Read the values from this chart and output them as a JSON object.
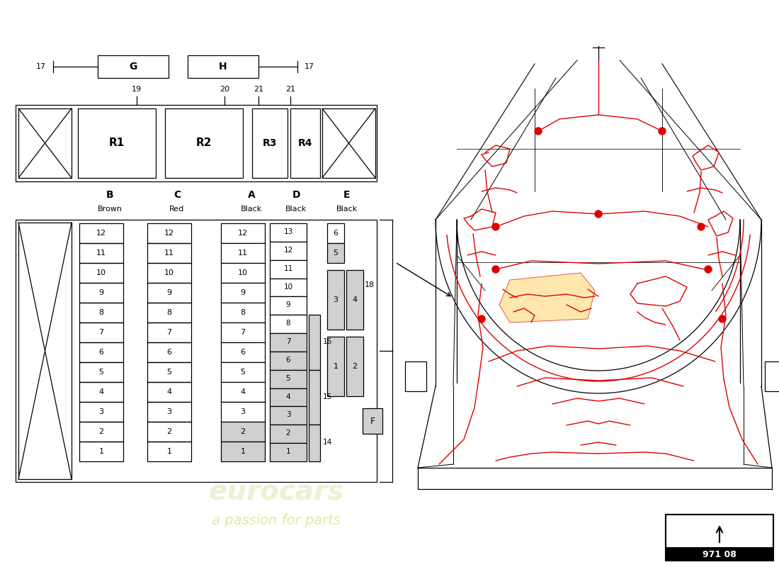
{
  "bg": "#ffffff",
  "bk": "#000000",
  "rd": "#dd0000",
  "lg": "#d0d0d0",
  "yw": "#ffe090",
  "wm1": "#e0e0a8",
  "wm2": "#c8c830",
  "part_no": "971 08",
  "G_label": "G",
  "H_label": "H",
  "relay_labels": [
    "R1",
    "R2",
    "R3",
    "R4"
  ],
  "col_labels": [
    "B",
    "C",
    "A",
    "D",
    "E"
  ],
  "col_subs": [
    "Brown",
    "Red",
    "Black",
    "Black",
    "Black"
  ]
}
